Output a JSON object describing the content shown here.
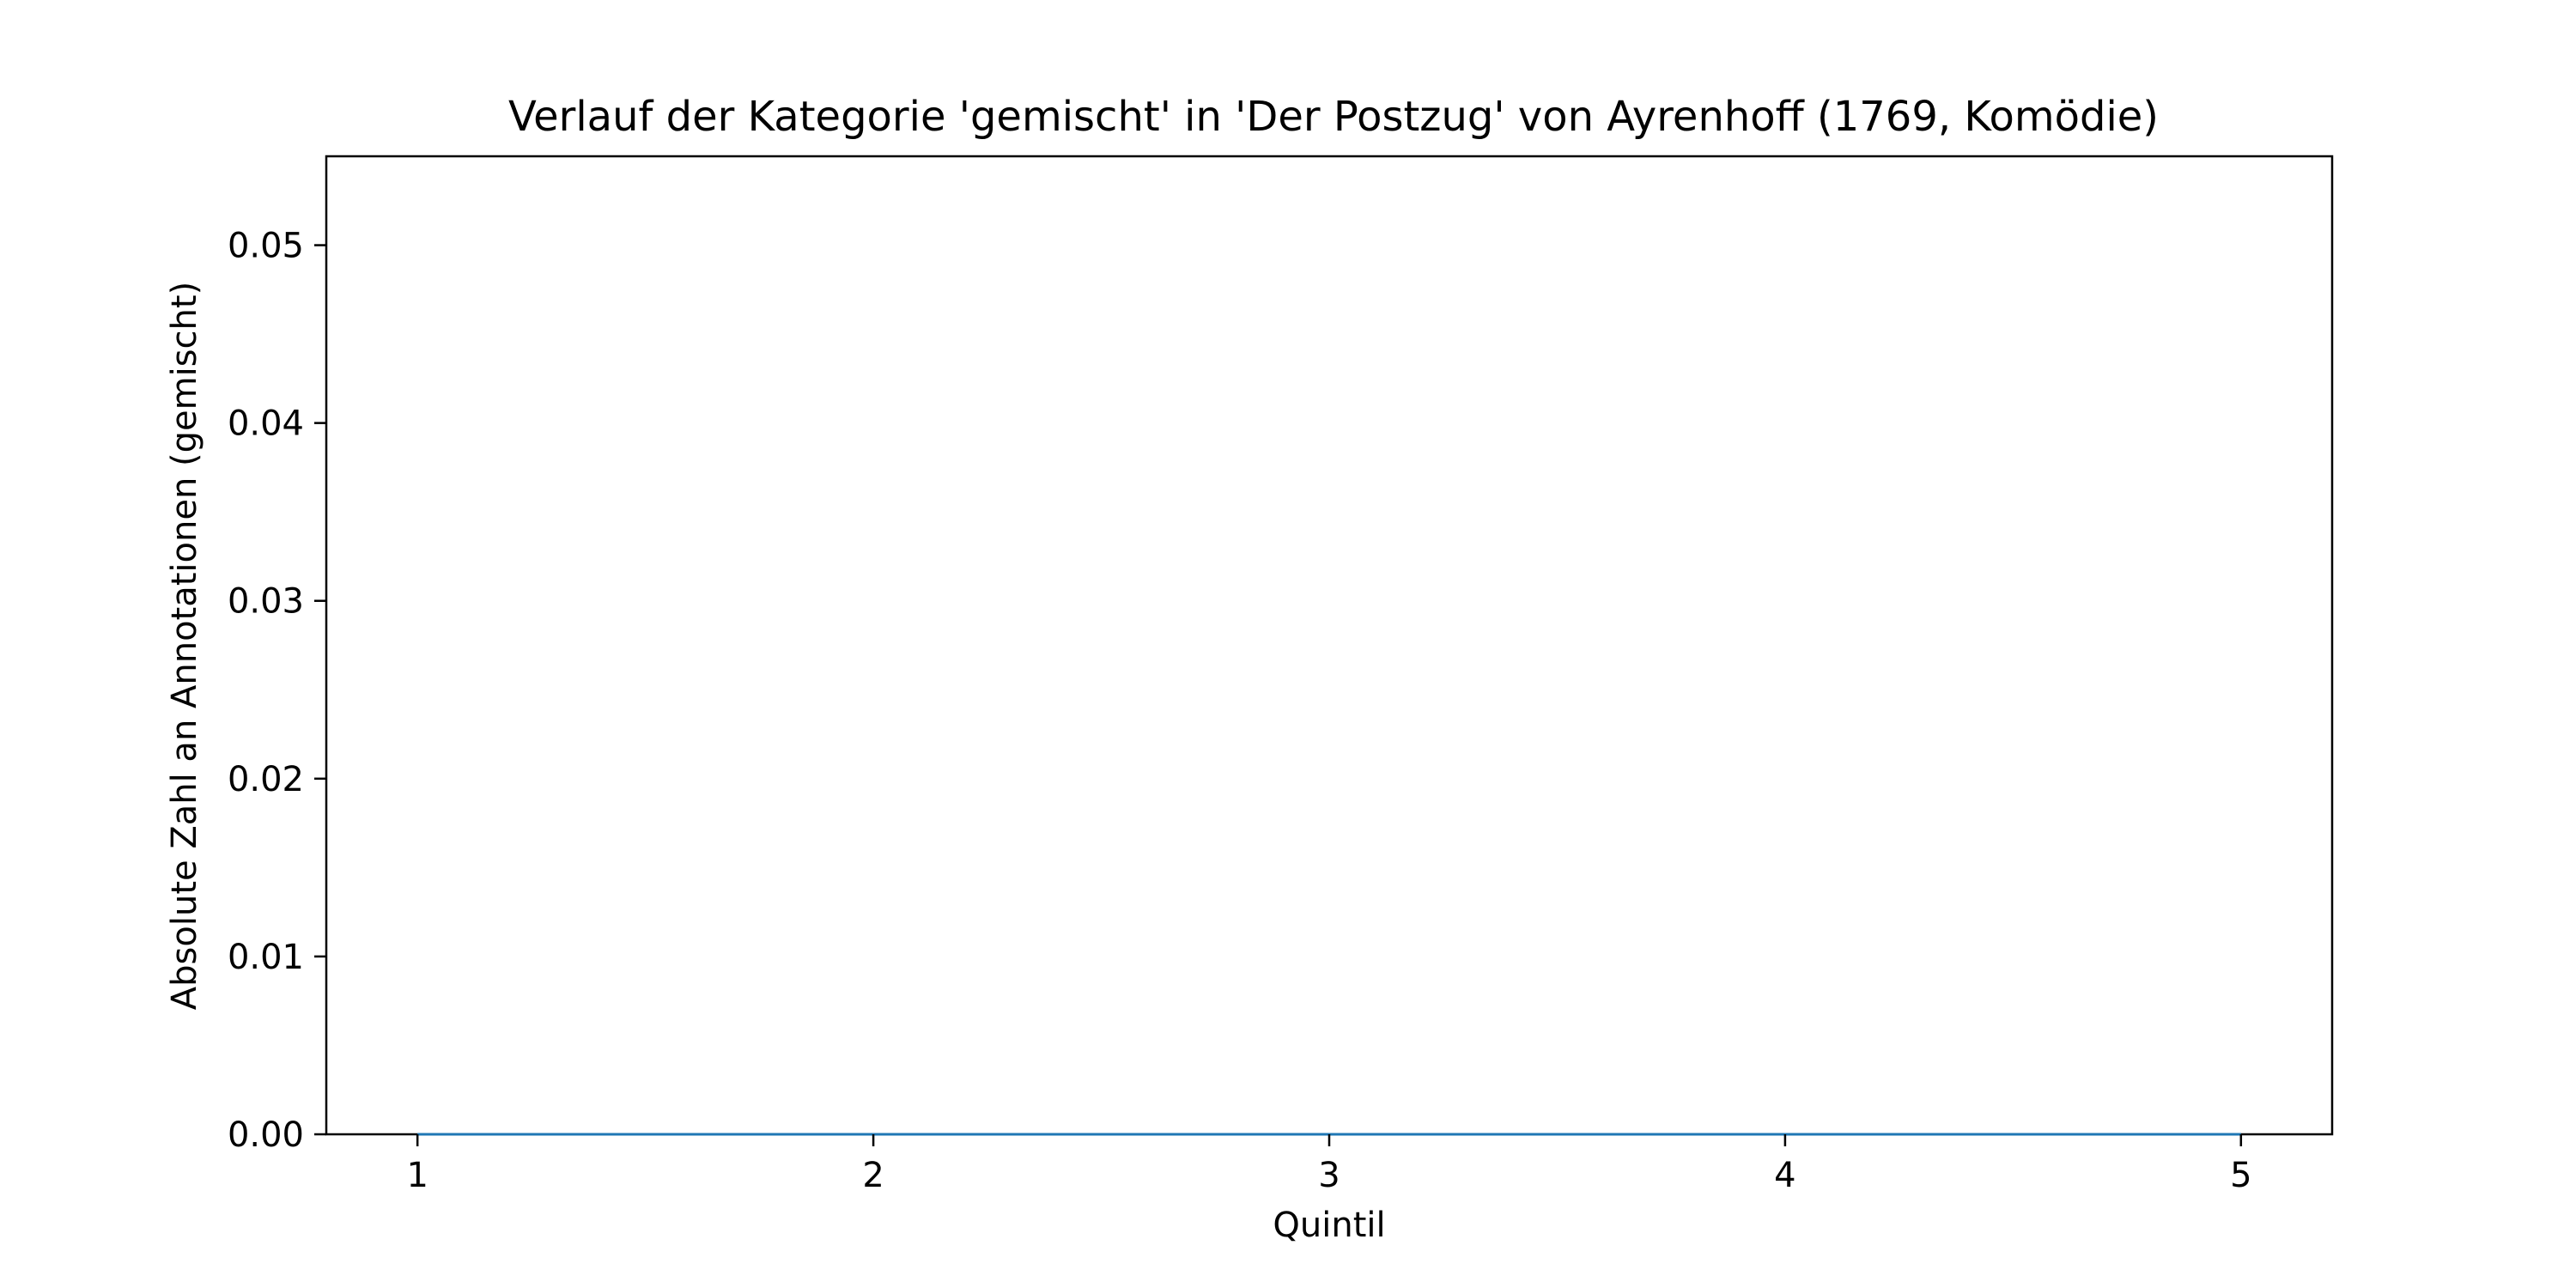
{
  "chart_data": {
    "type": "line",
    "title": "Verlauf der Kategorie 'gemischt' in 'Der Postzug' von Ayrenhoff (1769, Komödie)",
    "xlabel": "Quintil",
    "ylabel": "Absolute Zahl an Annotationen (gemischt)",
    "x": [
      1,
      2,
      3,
      4,
      5
    ],
    "x_tick_labels": [
      "1",
      "2",
      "3",
      "4",
      "5"
    ],
    "xlim": [
      0.8,
      5.2
    ],
    "series": [
      {
        "values": [
          0,
          0,
          0,
          0,
          0
        ]
      }
    ],
    "ylim": [
      0,
      0.055
    ],
    "y_ticks": [
      0,
      0.01,
      0.02,
      0.03,
      0.04,
      0.05
    ],
    "y_tick_labels": [
      "0.00",
      "0.01",
      "0.02",
      "0.03",
      "0.04",
      "0.05"
    ],
    "grid": false,
    "legend": "none",
    "colors": {
      "line": "#1f77b4",
      "axes": "#000000"
    }
  }
}
